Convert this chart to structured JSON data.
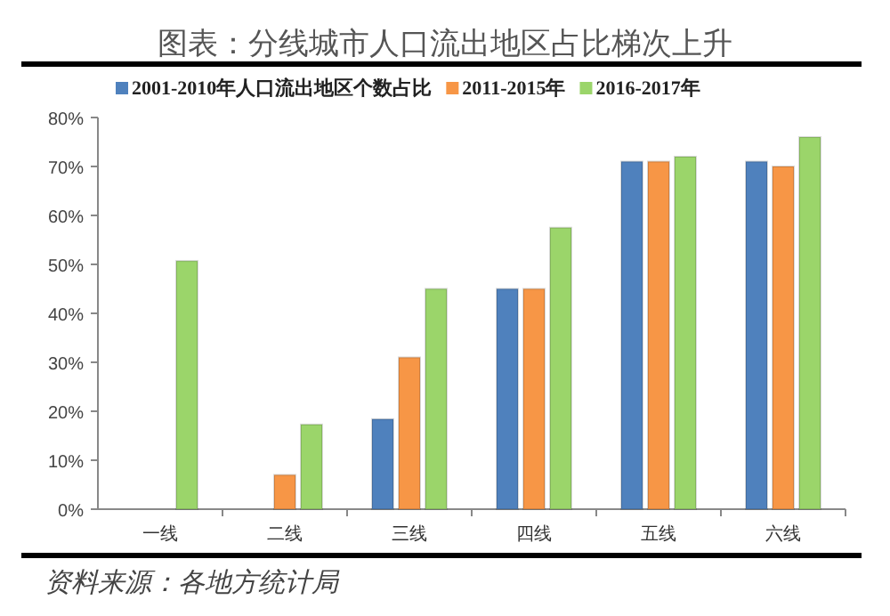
{
  "chart_data": {
    "type": "bar",
    "title": "图表：分线城市人口流出地区占比梯次上升",
    "categories": [
      "一线",
      "二线",
      "三线",
      "四线",
      "五线",
      "六线"
    ],
    "series": [
      {
        "name": "2001-2010年人口流出地区个数占比",
        "color": "#4f81bd",
        "values": [
          0,
          0,
          18.4,
          45,
          71,
          71
        ]
      },
      {
        "name": "2011-2015年",
        "color": "#f79646",
        "values": [
          0,
          7,
          31,
          45,
          71,
          70
        ]
      },
      {
        "name": "2016-2017年",
        "color": "#9bd56a",
        "values": [
          50.7,
          17.3,
          45,
          57.5,
          72,
          76
        ]
      }
    ],
    "ylim": [
      0,
      80
    ],
    "yticks": [
      {
        "value": 0,
        "label": "0%"
      },
      {
        "value": 10,
        "label": "10%"
      },
      {
        "value": 20,
        "label": "20%"
      },
      {
        "value": 30,
        "label": "30%"
      },
      {
        "value": 40,
        "label": "40%"
      },
      {
        "value": 50,
        "label": "50%"
      },
      {
        "value": 60,
        "label": "60%"
      },
      {
        "value": 70,
        "label": "70%"
      },
      {
        "value": 80,
        "label": "80%"
      }
    ],
    "legend": "top",
    "grid": false,
    "annotations": [
      "资料来源：各地方统计局"
    ]
  }
}
